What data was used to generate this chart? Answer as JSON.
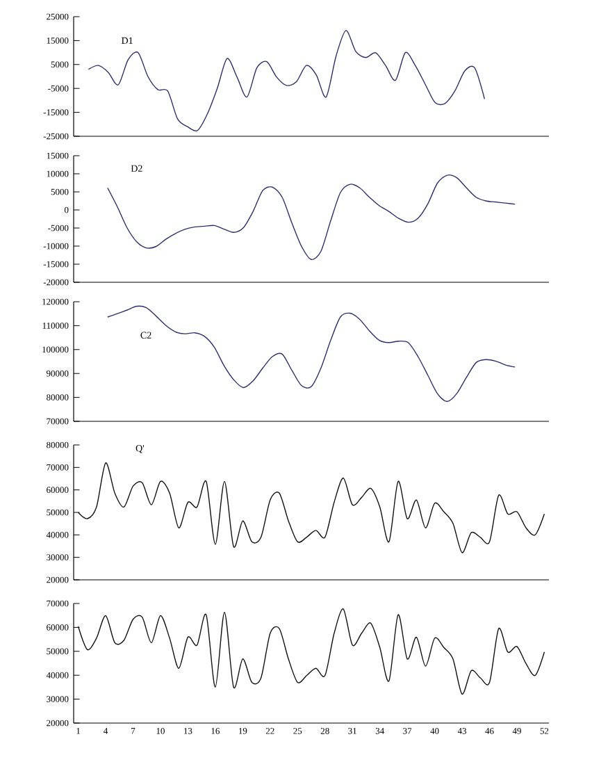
{
  "chart_data": [
    {
      "type": "line",
      "categories": [
        null,
        null,
        null,
        null,
        null,
        null,
        null,
        null,
        null,
        null,
        null,
        null,
        null,
        null,
        null,
        null,
        null,
        null,
        null,
        null,
        null,
        null,
        null,
        null,
        null,
        null,
        null,
        null,
        null,
        null,
        null,
        null,
        null,
        null,
        null,
        null,
        null,
        null,
        null,
        null,
        null,
        null,
        null,
        null,
        null,
        null,
        null,
        null
      ],
      "ylim": [
        -25000,
        25000
      ],
      "yticks": [
        -25000,
        -15000,
        -5000,
        5000,
        15000,
        25000
      ],
      "tick_labels": "y",
      "series": [
        {
          "name": "D1",
          "color": "#2e2e6e",
          "values": [
            null,
            3000,
            4600,
            1700,
            -3500,
            7000,
            10000,
            0,
            -5500,
            -6100,
            -17800,
            -21000,
            -22600,
            -15700,
            -5000,
            7500,
            -250,
            -8600,
            3600,
            6200,
            -250,
            -3750,
            -2200,
            4600,
            700,
            -8600,
            8500,
            19200,
            10400,
            7900,
            9900,
            4600,
            -1600,
            10000,
            4600,
            -3200,
            -10900,
            -11300,
            -6100,
            2300,
            3600,
            -9400,
            null,
            null,
            null,
            null,
            null,
            null
          ]
        }
      ]
    },
    {
      "type": "line",
      "categories": [
        null,
        null,
        null,
        null,
        null,
        null,
        null,
        null,
        null,
        null,
        null,
        null,
        null,
        null,
        null,
        null,
        null,
        null,
        null,
        null,
        null,
        null,
        null,
        null,
        null,
        null,
        null,
        null,
        null,
        null,
        null,
        null,
        null,
        null,
        null,
        null,
        null,
        null,
        null,
        null,
        null,
        null,
        null,
        null,
        null,
        null,
        null,
        null,
        null
      ],
      "ylim": [
        -20000,
        15000
      ],
      "yticks": [
        -20000,
        -15000,
        -10000,
        -5000,
        0,
        5000,
        10000,
        15000
      ],
      "tick_labels": "y",
      "series": [
        {
          "name": "D2",
          "color": "#2e2e6e",
          "values": [
            null,
            null,
            null,
            6100,
            900,
            -4900,
            -8800,
            -10500,
            -10100,
            -8100,
            -6500,
            -5300,
            -4700,
            -4500,
            -4300,
            -5300,
            -6200,
            -4900,
            -400,
            5400,
            6300,
            3500,
            -3600,
            -10100,
            -13700,
            -11400,
            -3000,
            4800,
            7100,
            6100,
            3500,
            1200,
            -400,
            -2300,
            -3400,
            -2300,
            1600,
            7400,
            9600,
            8900,
            6100,
            3500,
            2500,
            2200,
            1900,
            1600,
            null,
            null,
            null
          ]
        }
      ]
    },
    {
      "type": "line",
      "categories": [
        null,
        null,
        null,
        null,
        null,
        null,
        null,
        null,
        null,
        null,
        null,
        null,
        null,
        null,
        null,
        null,
        null,
        null,
        null,
        null,
        null,
        null,
        null,
        null,
        null,
        null,
        null,
        null,
        null,
        null,
        null,
        null,
        null,
        null,
        null,
        null,
        null,
        null,
        null,
        null,
        null,
        null,
        null,
        null,
        null,
        null,
        null,
        null,
        null
      ],
      "ylim": [
        70000,
        120000
      ],
      "yticks": [
        70000,
        80000,
        90000,
        100000,
        110000,
        120000
      ],
      "tick_labels": "y",
      "series": [
        {
          "name": "C2",
          "color": "#2e2e6e",
          "values": [
            null,
            null,
            null,
            113600,
            115000,
            116500,
            118100,
            117500,
            114000,
            110100,
            107400,
            106600,
            107000,
            105500,
            101000,
            93300,
            87400,
            84100,
            86900,
            92300,
            97100,
            98100,
            91300,
            84900,
            84500,
            92300,
            103900,
            113600,
            115200,
            112600,
            107800,
            103900,
            102900,
            103500,
            102900,
            97100,
            89400,
            81600,
            78300,
            81600,
            88400,
            94600,
            95800,
            95200,
            93600,
            92700,
            null,
            null,
            null
          ]
        }
      ]
    },
    {
      "type": "line",
      "categories": [
        null,
        null,
        null,
        null,
        null,
        null,
        null,
        null,
        null,
        null,
        null,
        null,
        null,
        null,
        null,
        null,
        null,
        null,
        null,
        null,
        null,
        null,
        null,
        null,
        null,
        null,
        null,
        null,
        null,
        null,
        null,
        null,
        null,
        null,
        null,
        null,
        null,
        null,
        null,
        null,
        null,
        null,
        null,
        null,
        null,
        null,
        null,
        null,
        null,
        null,
        null,
        null
      ],
      "ylim": [
        20000,
        80000
      ],
      "yticks": [
        20000,
        30000,
        40000,
        50000,
        60000,
        70000,
        80000
      ],
      "tick_labels": "y",
      "series": [
        {
          "name": "Q'",
          "color": "#111111",
          "values": [
            49900,
            47200,
            52400,
            72000,
            58600,
            52400,
            61700,
            63200,
            53400,
            63800,
            58600,
            43100,
            54500,
            52400,
            63800,
            35800,
            63800,
            34800,
            46200,
            36900,
            39000,
            55500,
            58600,
            46200,
            36900,
            39000,
            42000,
            39000,
            54500,
            65300,
            53400,
            56600,
            60700,
            52400,
            36900,
            63800,
            47200,
            55500,
            43100,
            54100,
            50300,
            45100,
            32100,
            41000,
            38900,
            36900,
            57600,
            49300,
            50300,
            43100,
            40000,
            49300
          ]
        }
      ]
    },
    {
      "type": "line",
      "categories": [
        "1",
        null,
        null,
        "4",
        null,
        null,
        "7",
        null,
        null,
        "10",
        null,
        null,
        "13",
        null,
        null,
        "16",
        null,
        null,
        "19",
        null,
        null,
        "22",
        null,
        null,
        "25",
        null,
        null,
        "28",
        null,
        null,
        "31",
        null,
        null,
        "34",
        null,
        null,
        "37",
        null,
        null,
        "40",
        null,
        null,
        "43",
        null,
        null,
        "46",
        null,
        null,
        "49",
        null,
        null,
        "52"
      ],
      "ylim": [
        20000,
        70000
      ],
      "yticks": [
        20000,
        30000,
        40000,
        50000,
        60000,
        70000
      ],
      "series": [
        {
          "color": "#111111",
          "values": [
            60400,
            50700,
            55500,
            64900,
            53600,
            54600,
            63400,
            64300,
            53600,
            64900,
            55500,
            42900,
            55900,
            52600,
            65300,
            35000,
            66300,
            35000,
            46800,
            37000,
            38900,
            57500,
            59500,
            46800,
            37000,
            39900,
            42900,
            39900,
            57500,
            67700,
            52600,
            57500,
            61800,
            51600,
            37600,
            65300,
            46800,
            55900,
            43800,
            55500,
            51600,
            46800,
            32100,
            41900,
            38900,
            37000,
            59500,
            49700,
            52000,
            44800,
            39900,
            49700
          ]
        }
      ]
    }
  ]
}
